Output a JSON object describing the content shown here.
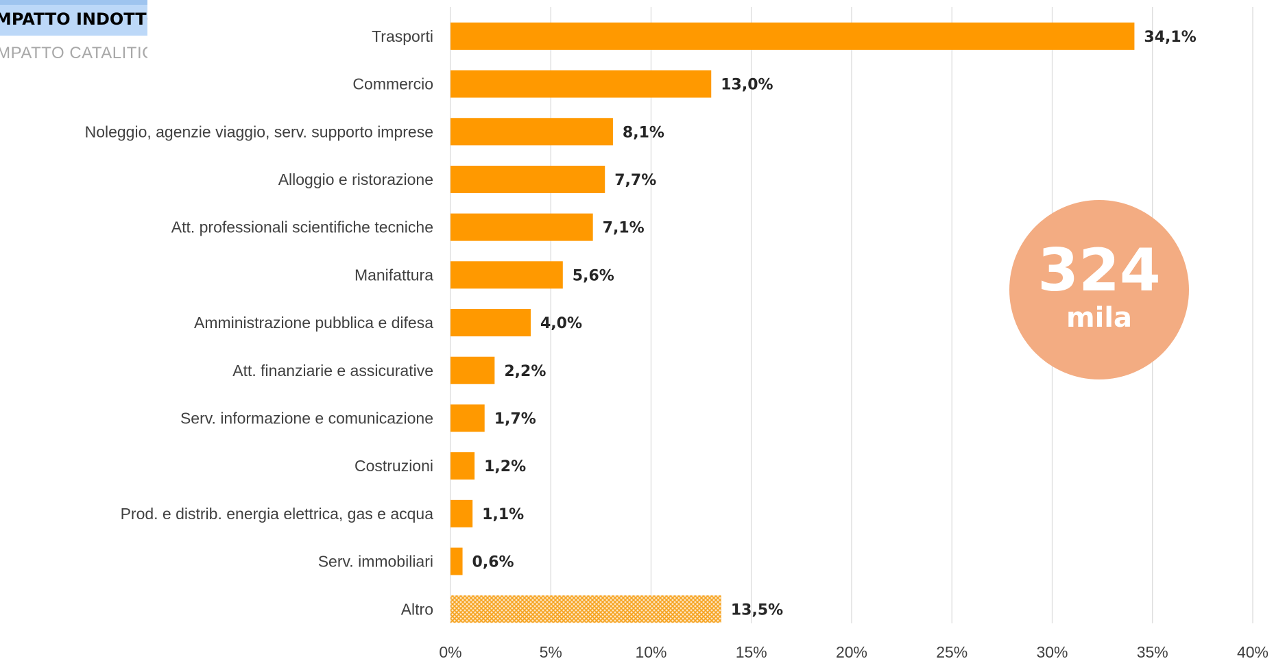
{
  "tabs": {
    "active_label": "IMPATTO INDOTTO",
    "inactive_label": "IMPATTO CATALITICO"
  },
  "badge": {
    "number": "324",
    "unit": "mila",
    "color": "#f3ac82"
  },
  "chart_data": {
    "type": "bar",
    "orientation": "horizontal",
    "categories": [
      "Trasporti",
      "Commercio",
      "Noleggio, agenzie viaggio, serv. supporto imprese",
      "Alloggio e ristorazione",
      "Att. professionali scientifiche tecniche",
      "Manifattura",
      "Amministrazione pubblica e difesa",
      "Att. finanziarie e assicurative",
      "Serv. informazione e comunicazione",
      "Costruzioni",
      "Prod. e distrib. energia elettrica, gas e acqua",
      "Serv. immobiliari",
      "Altro"
    ],
    "values": [
      34.1,
      13.0,
      8.1,
      7.7,
      7.1,
      5.6,
      4.0,
      2.2,
      1.7,
      1.2,
      1.1,
      0.6,
      13.5
    ],
    "value_labels": [
      "34,1%",
      "13,0%",
      "8,1%",
      "7,7%",
      "7,1%",
      "5,6%",
      "4,0%",
      "2,2%",
      "1,7%",
      "1,2%",
      "1,1%",
      "0,6%",
      "13,5%"
    ],
    "hatched_categories": [
      "Altro"
    ],
    "xlim": [
      0,
      40
    ],
    "xticks": [
      0,
      5,
      10,
      15,
      20,
      25,
      30,
      35,
      40
    ],
    "xtick_labels": [
      "0%",
      "5%",
      "10%",
      "15%",
      "20%",
      "25%",
      "30%",
      "35%",
      "40%"
    ],
    "grid": "vertical",
    "bar_color": "#ff9900",
    "hatch_color": "#f6a21e"
  }
}
